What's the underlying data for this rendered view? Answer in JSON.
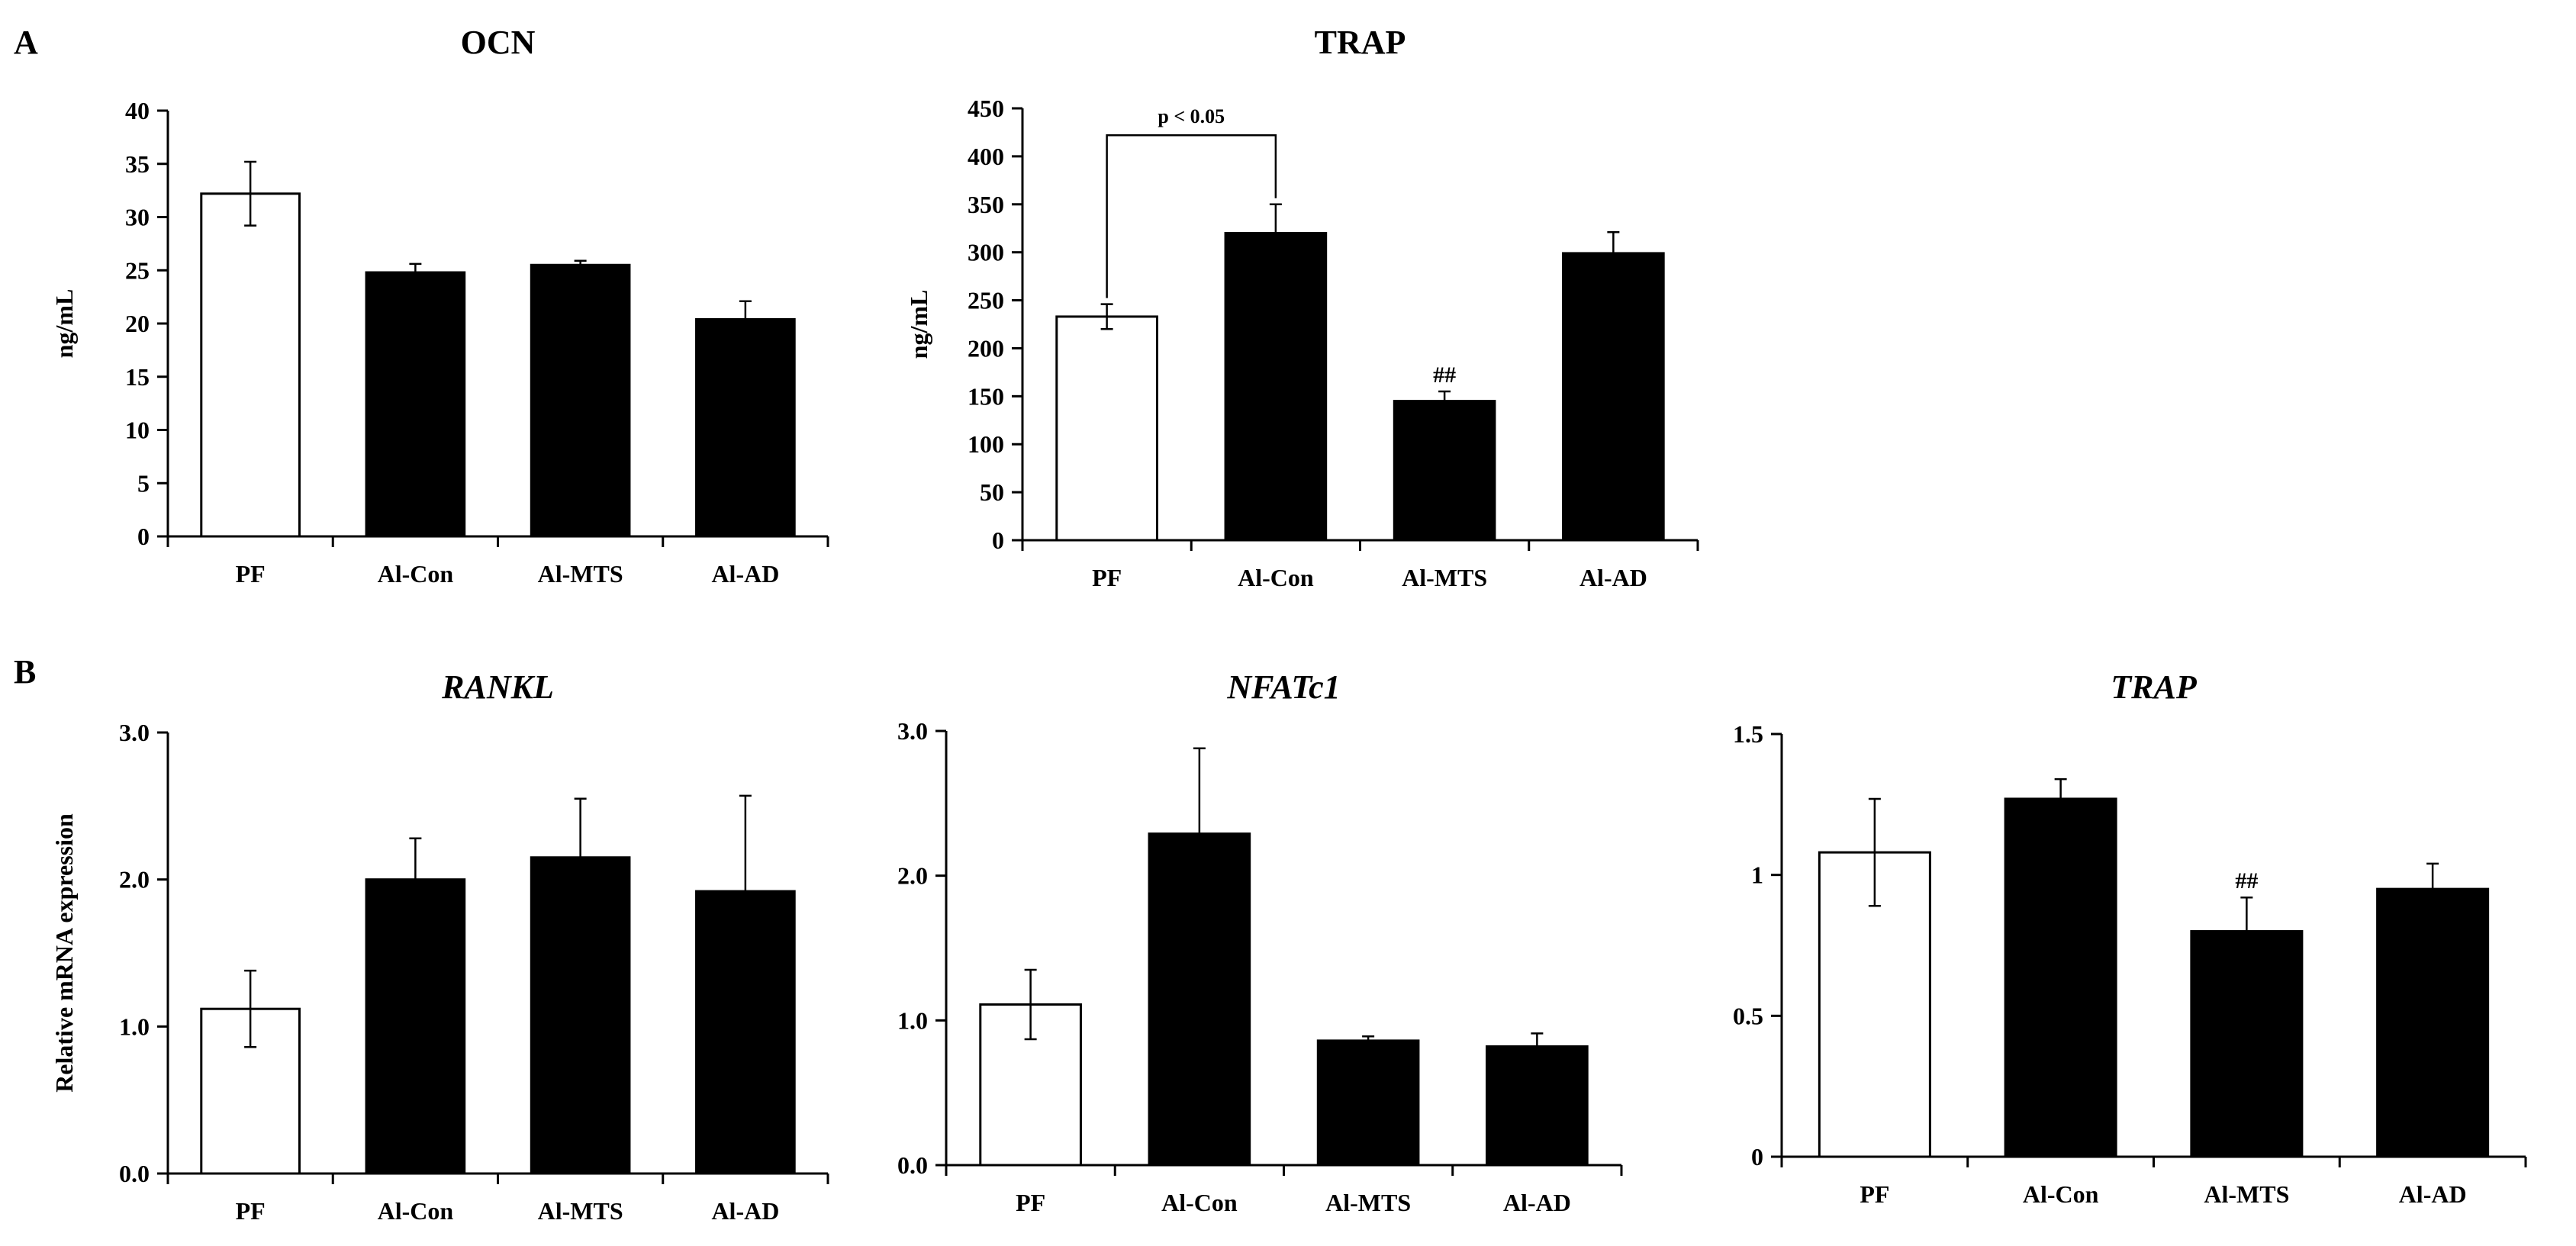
{
  "panels": [
    {
      "letter": "A"
    },
    {
      "letter": "B"
    }
  ],
  "chart_data": [
    {
      "type": "bar",
      "panel": "A",
      "title": "OCN",
      "title_italic": false,
      "ylabel": "ng/mL",
      "categories": [
        "PF",
        "Al-Con",
        "Al-MTS",
        "Al-AD"
      ],
      "values": [
        32.2,
        24.8,
        25.5,
        20.4
      ],
      "errors": [
        3.0,
        0.8,
        0.4,
        1.7
      ],
      "fills": [
        "#ffffff",
        "#000000",
        "#000000",
        "#000000"
      ],
      "ylim": [
        0,
        40
      ],
      "yticks": [
        0,
        5,
        10,
        15,
        20,
        25,
        30,
        35,
        40
      ],
      "ytick_labels": [
        "0",
        "5",
        "10",
        "15",
        "20",
        "25",
        "30",
        "35",
        "40"
      ],
      "markers": [],
      "bracket": null
    },
    {
      "type": "bar",
      "panel": "A",
      "title": "TRAP",
      "title_italic": false,
      "ylabel": "ng/mL",
      "categories": [
        "PF",
        "Al-Con",
        "Al-MTS",
        "Al-AD"
      ],
      "values": [
        233,
        320,
        145,
        299
      ],
      "errors": [
        13,
        30,
        10,
        22
      ],
      "fills": [
        "#ffffff",
        "#000000",
        "#000000",
        "#000000"
      ],
      "ylim": [
        0,
        450
      ],
      "yticks": [
        0,
        50,
        100,
        150,
        200,
        250,
        300,
        350,
        400,
        450
      ],
      "ytick_labels": [
        "0",
        "50",
        "100",
        "150",
        "200",
        "250",
        "300",
        "350",
        "400",
        "450"
      ],
      "markers": [
        {
          "index": 2,
          "text": "##"
        }
      ],
      "bracket": {
        "from": 0,
        "to": 1,
        "level": 422,
        "text": "p < 0.05"
      }
    },
    {
      "type": "bar",
      "panel": "B",
      "title": "RANKL",
      "title_italic": true,
      "ylabel": "Relative mRNA expression",
      "categories": [
        "PF",
        "Al-Con",
        "Al-MTS",
        "Al-AD"
      ],
      "values": [
        1.12,
        2.0,
        2.15,
        1.92
      ],
      "errors": [
        0.26,
        0.28,
        0.4,
        0.65
      ],
      "fills": [
        "#ffffff",
        "#000000",
        "#000000",
        "#000000"
      ],
      "ylim": [
        0,
        3
      ],
      "yticks": [
        0,
        1,
        2,
        3
      ],
      "ytick_labels": [
        "0.0",
        "1.0",
        "2.0",
        "3.0"
      ],
      "markers": [],
      "bracket": null
    },
    {
      "type": "bar",
      "panel": "B",
      "title": "NFATc1",
      "title_italic": true,
      "ylabel": "",
      "categories": [
        "PF",
        "Al-Con",
        "Al-MTS",
        "Al-AD"
      ],
      "values": [
        1.11,
        2.29,
        0.86,
        0.82
      ],
      "errors": [
        0.24,
        0.59,
        0.03,
        0.09
      ],
      "fills": [
        "#ffffff",
        "#000000",
        "#000000",
        "#000000"
      ],
      "ylim": [
        0,
        3
      ],
      "yticks": [
        0,
        1,
        2,
        3
      ],
      "ytick_labels": [
        "0.0",
        "1.0",
        "2.0",
        "3.0"
      ],
      "markers": [],
      "bracket": null
    },
    {
      "type": "bar",
      "panel": "B",
      "title": "TRAP",
      "title_italic": true,
      "ylabel": "",
      "categories": [
        "PF",
        "Al-Con",
        "Al-MTS",
        "Al-AD"
      ],
      "values": [
        1.08,
        1.27,
        0.8,
        0.95
      ],
      "errors": [
        0.19,
        0.07,
        0.12,
        0.09
      ],
      "fills": [
        "#ffffff",
        "#000000",
        "#000000",
        "#000000"
      ],
      "ylim": [
        0,
        1.5
      ],
      "yticks": [
        0,
        0.5,
        1,
        1.5
      ],
      "ytick_labels": [
        "0",
        "0.5",
        "1",
        "1.5"
      ],
      "markers": [
        {
          "index": 2,
          "text": "##"
        }
      ],
      "bracket": null
    }
  ]
}
